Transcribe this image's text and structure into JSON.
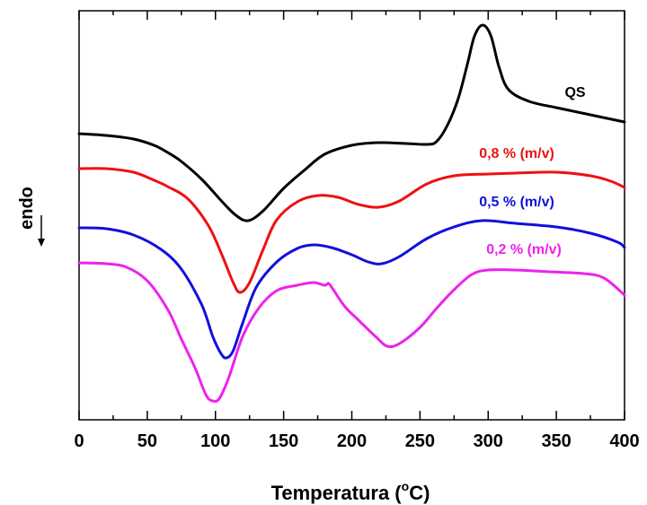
{
  "chart_data": {
    "type": "line",
    "title": "",
    "xlabel": "Temperatura (",
    "xlabel_unit": "C)",
    "xlabel_degree": "o",
    "ylabel": "endo",
    "xlim": [
      0,
      400
    ],
    "x_ticks": [
      "0",
      "50",
      "100",
      "150",
      "200",
      "250",
      "300",
      "350",
      "400"
    ],
    "y_ticks_shown": false,
    "grid": false,
    "series": [
      {
        "name": "QS",
        "color": "#000000",
        "points": [
          [
            0,
            149
          ],
          [
            20,
            151
          ],
          [
            40,
            155
          ],
          [
            55,
            162
          ],
          [
            65,
            170
          ],
          [
            75,
            180
          ],
          [
            90,
            200
          ],
          [
            105,
            225
          ],
          [
            115,
            240
          ],
          [
            124,
            246
          ],
          [
            135,
            235
          ],
          [
            150,
            210
          ],
          [
            165,
            190
          ],
          [
            180,
            172
          ],
          [
            200,
            162
          ],
          [
            220,
            159
          ],
          [
            240,
            160
          ],
          [
            255,
            161
          ],
          [
            262,
            158
          ],
          [
            270,
            140
          ],
          [
            278,
            110
          ],
          [
            285,
            70
          ],
          [
            290,
            40
          ],
          [
            296,
            28
          ],
          [
            302,
            40
          ],
          [
            308,
            75
          ],
          [
            315,
            100
          ],
          [
            330,
            113
          ],
          [
            350,
            120
          ],
          [
            375,
            128
          ],
          [
            400,
            136
          ]
        ]
      },
      {
        "name": "0,8 % (m/v)",
        "color": "#ee1111",
        "points": [
          [
            0,
            188
          ],
          [
            20,
            188
          ],
          [
            40,
            192
          ],
          [
            55,
            201
          ],
          [
            65,
            208
          ],
          [
            80,
            222
          ],
          [
            95,
            252
          ],
          [
            105,
            285
          ],
          [
            113,
            315
          ],
          [
            118,
            326
          ],
          [
            125,
            315
          ],
          [
            135,
            278
          ],
          [
            145,
            245
          ],
          [
            160,
            225
          ],
          [
            175,
            218
          ],
          [
            190,
            220
          ],
          [
            205,
            228
          ],
          [
            220,
            231
          ],
          [
            235,
            224
          ],
          [
            255,
            205
          ],
          [
            275,
            196
          ],
          [
            300,
            194
          ],
          [
            320,
            193
          ],
          [
            350,
            192
          ],
          [
            375,
            196
          ],
          [
            390,
            202
          ],
          [
            400,
            209
          ]
        ]
      },
      {
        "name": "0,5 % (m/v)",
        "color": "#1010dd",
        "points": [
          [
            0,
            254
          ],
          [
            20,
            255
          ],
          [
            40,
            262
          ],
          [
            60,
            278
          ],
          [
            75,
            300
          ],
          [
            90,
            340
          ],
          [
            98,
            375
          ],
          [
            104,
            394
          ],
          [
            108,
            399
          ],
          [
            113,
            391
          ],
          [
            120,
            360
          ],
          [
            130,
            320
          ],
          [
            145,
            292
          ],
          [
            160,
            277
          ],
          [
            172,
            273
          ],
          [
            185,
            276
          ],
          [
            200,
            284
          ],
          [
            212,
            292
          ],
          [
            222,
            294
          ],
          [
            235,
            286
          ],
          [
            255,
            266
          ],
          [
            275,
            253
          ],
          [
            295,
            246
          ],
          [
            320,
            249
          ],
          [
            350,
            253
          ],
          [
            375,
            260
          ],
          [
            395,
            270
          ],
          [
            400,
            276
          ]
        ]
      },
      {
        "name": "0,2 % (m/v)",
        "color": "#ee22ee",
        "points": [
          [
            0,
            293
          ],
          [
            20,
            294
          ],
          [
            35,
            298
          ],
          [
            50,
            313
          ],
          [
            65,
            345
          ],
          [
            75,
            378
          ],
          [
            85,
            410
          ],
          [
            93,
            440
          ],
          [
            98,
            447
          ],
          [
            103,
            444
          ],
          [
            110,
            420
          ],
          [
            120,
            375
          ],
          [
            132,
            343
          ],
          [
            145,
            324
          ],
          [
            160,
            318
          ],
          [
            172,
            315
          ],
          [
            180,
            318
          ],
          [
            183,
            316
          ],
          [
            186,
            322
          ],
          [
            195,
            342
          ],
          [
            205,
            357
          ],
          [
            218,
            376
          ],
          [
            226,
            386
          ],
          [
            235,
            383
          ],
          [
            250,
            365
          ],
          [
            262,
            344
          ],
          [
            275,
            323
          ],
          [
            288,
            306
          ],
          [
            300,
            301
          ],
          [
            320,
            301
          ],
          [
            345,
            303
          ],
          [
            370,
            305
          ],
          [
            385,
            310
          ],
          [
            400,
            329
          ]
        ]
      }
    ]
  }
}
